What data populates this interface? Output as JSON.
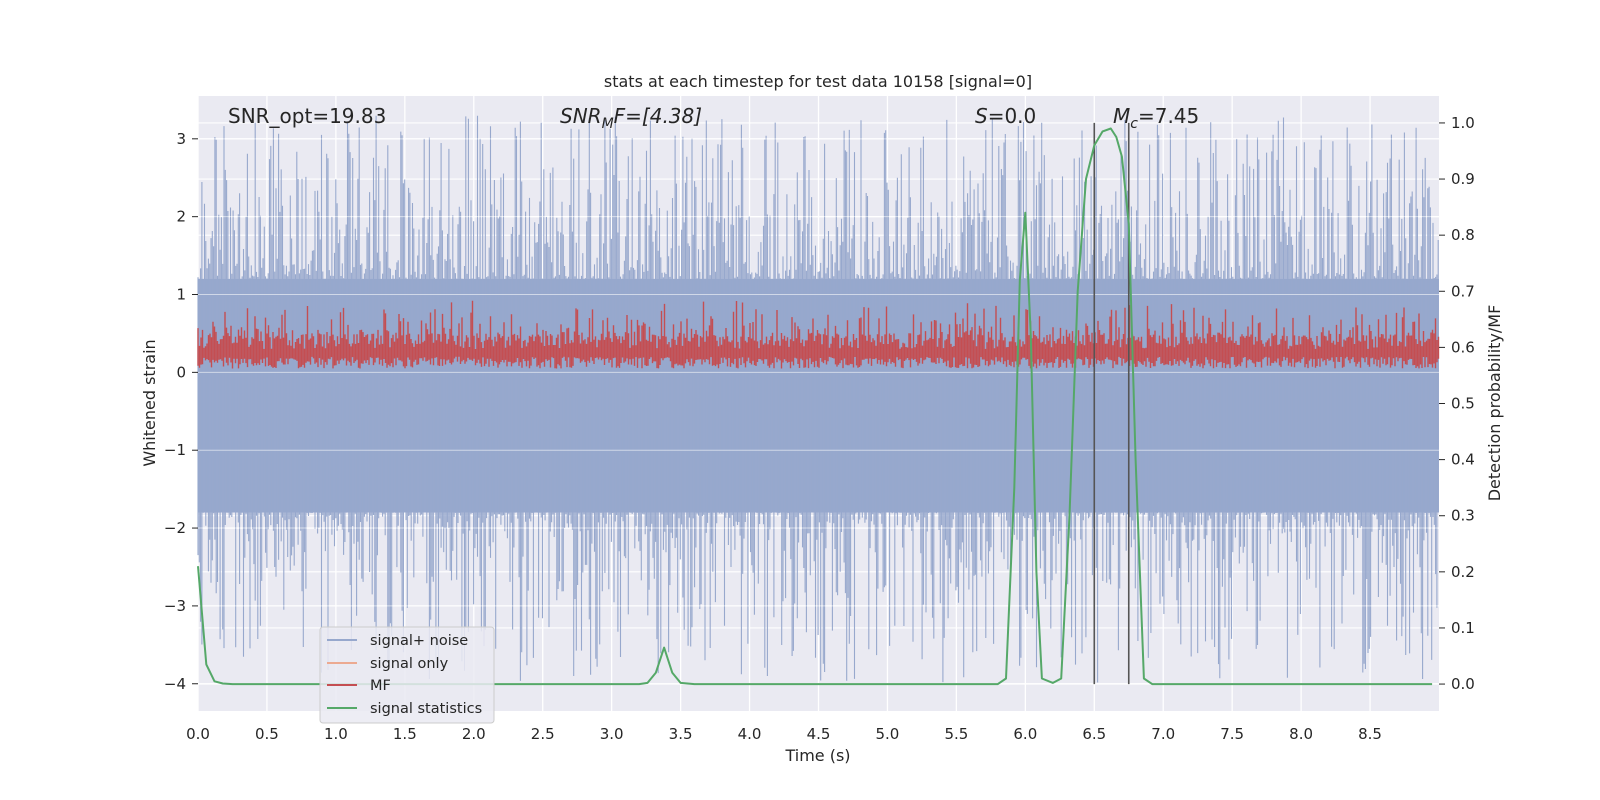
{
  "chart_data": {
    "type": "line",
    "title": "stats at each timestep for test data 10158 [signal=0]",
    "xlabel": "Time (s)",
    "ylabel": "Whitened strain",
    "ylabel_right": "Detection probability/MF",
    "xlim": [
      0.0,
      9.0
    ],
    "ylim": [
      -4.35,
      3.55
    ],
    "ylim_right": [
      -0.048,
      1.048
    ],
    "x_ticks": [
      "0.0",
      "0.5",
      "1.0",
      "1.5",
      "2.0",
      "2.5",
      "3.0",
      "3.5",
      "4.0",
      "4.5",
      "5.0",
      "5.5",
      "6.0",
      "6.5",
      "7.0",
      "7.5",
      "8.0",
      "8.5"
    ],
    "y_ticks": [
      "3",
      "2",
      "1",
      "0",
      "−1",
      "−2",
      "−3",
      "−4"
    ],
    "y_ticks_right": [
      "1.0",
      "0.9",
      "0.8",
      "0.7",
      "0.6",
      "0.5",
      "0.4",
      "0.3",
      "0.2",
      "0.1",
      "0.0"
    ],
    "grid": true,
    "legend_position": "lower-left",
    "annotations": {
      "snr_opt": "SNR_opt=19.83",
      "snr_mf_main": "SNR",
      "snr_mf_sub": "M",
      "snr_mf_rest": "F=[4.38]",
      "s_main": "S",
      "s_rest": "=0.0",
      "mc_main": "M",
      "mc_sub": "c",
      "mc_rest": "=7.45"
    },
    "vlines_x": [
      6.5,
      6.75
    ],
    "series": [
      {
        "name": "signal+ noise",
        "color": "#97a8cd",
        "axis": "left",
        "band_upper": 1.2,
        "band_lower": -1.8,
        "peak_max": 3.3,
        "peak_min": -4.0
      },
      {
        "name": "signal only",
        "color": "#ecaa91",
        "axis": "left"
      },
      {
        "name": "MF",
        "color": "#c44e52",
        "axis": "left",
        "band_upper": 0.7,
        "band_lower": 0.05
      },
      {
        "name": "signal statistics",
        "color": "#55a868",
        "axis": "right",
        "x": [
          0.0,
          0.06,
          0.12,
          0.18,
          0.25,
          0.4,
          0.6,
          1.0,
          2.0,
          3.0,
          3.2,
          3.26,
          3.32,
          3.38,
          3.44,
          3.5,
          3.6,
          4.0,
          5.0,
          5.8,
          5.86,
          5.92,
          5.96,
          6.0,
          6.04,
          6.08,
          6.12,
          6.2,
          6.26,
          6.32,
          6.38,
          6.44,
          6.5,
          6.56,
          6.62,
          6.66,
          6.7,
          6.75,
          6.8,
          6.86,
          6.92,
          7.0,
          7.5,
          8.0,
          8.5,
          8.95
        ],
        "values": [
          0.21,
          0.035,
          0.005,
          0.001,
          0.0,
          0.0,
          0.0,
          0.0,
          0.0,
          0.0,
          0.0,
          0.002,
          0.02,
          0.065,
          0.02,
          0.002,
          0.0,
          0.0,
          0.0,
          0.0,
          0.01,
          0.35,
          0.72,
          0.84,
          0.62,
          0.2,
          0.01,
          0.002,
          0.01,
          0.3,
          0.7,
          0.9,
          0.96,
          0.985,
          0.99,
          0.975,
          0.94,
          0.82,
          0.4,
          0.01,
          0.0,
          0.0,
          0.0,
          0.0,
          0.0,
          0.0
        ]
      }
    ]
  }
}
